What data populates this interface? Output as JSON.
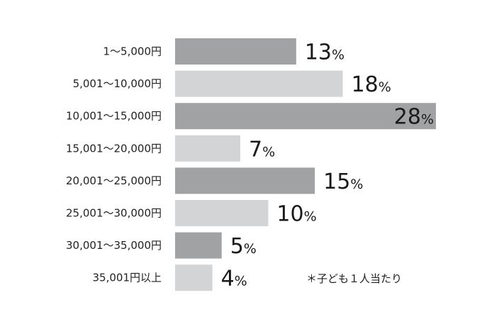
{
  "chart_data": {
    "type": "bar",
    "orientation": "horizontal",
    "title": "",
    "xlabel": "",
    "ylabel": "",
    "categories": [
      "1〜5,000円",
      "5,001〜10,000円",
      "10,001〜15,000円",
      "15,001〜20,000円",
      "20,001〜25,000円",
      "25,001〜30,000円",
      "30,001〜35,000円",
      "35,001円以上"
    ],
    "values": [
      13,
      18,
      28,
      7,
      15,
      10,
      5,
      4
    ],
    "unit": "%",
    "xlim": [
      0,
      28
    ],
    "grid": false,
    "colors": [
      "#a0a2a3",
      "#d2d4d5"
    ],
    "annotation": "＊子ども１人当たり"
  }
}
